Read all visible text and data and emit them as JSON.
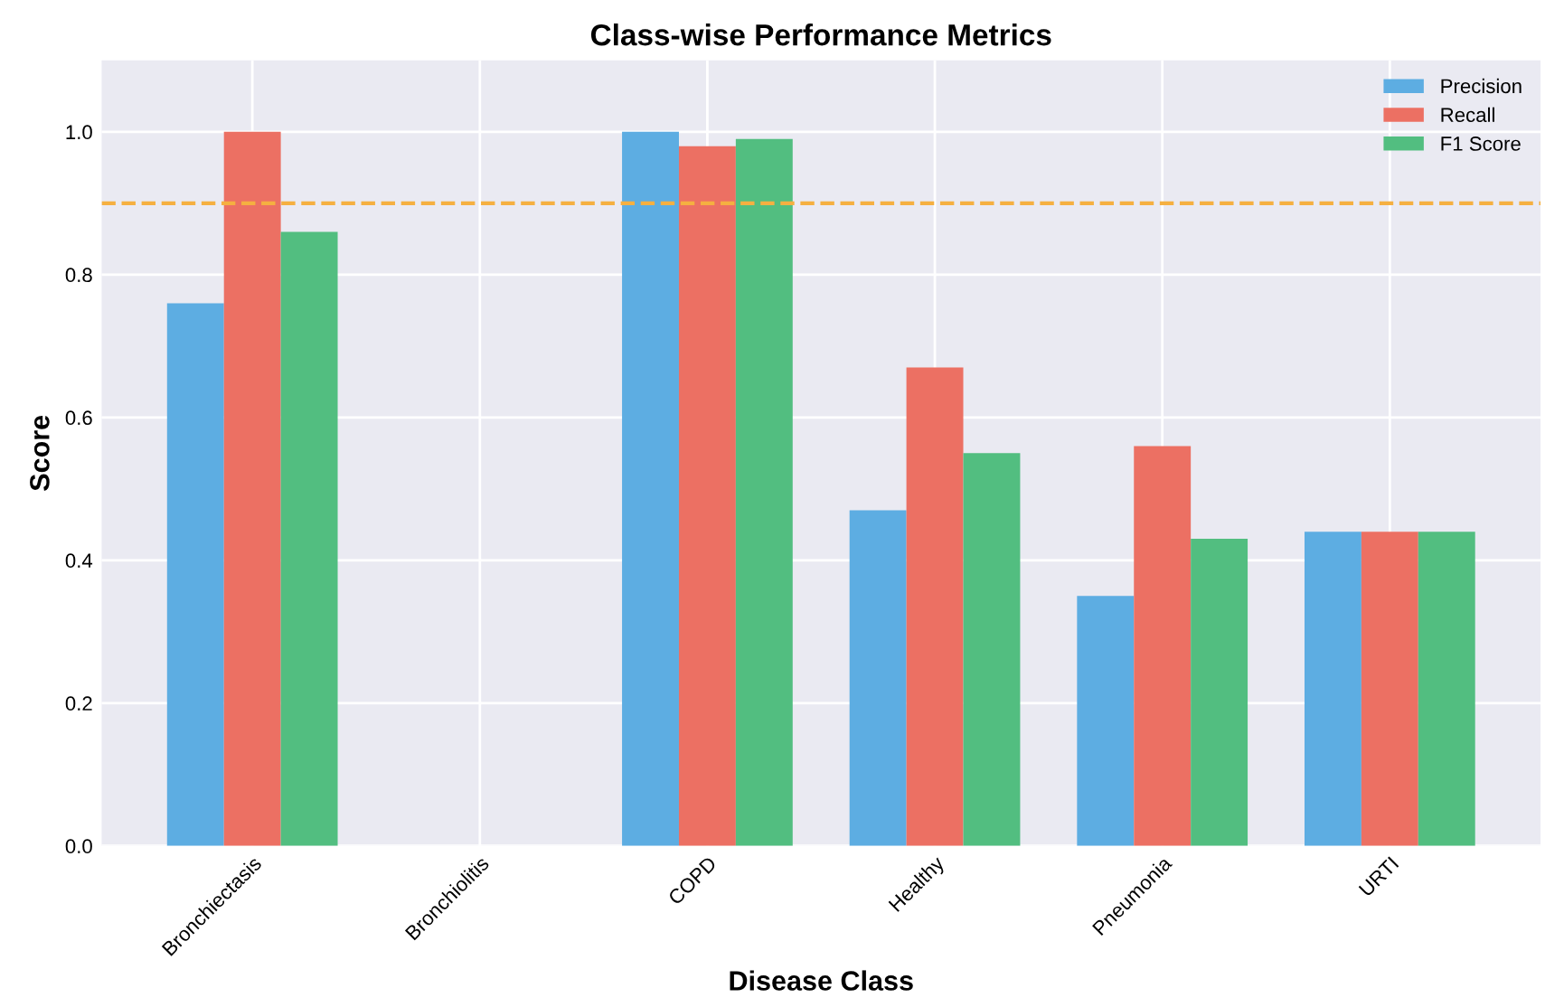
{
  "chart_data": {
    "type": "bar",
    "title": "Class-wise Performance Metrics",
    "xlabel": "Disease Class",
    "ylabel": "Score",
    "categories": [
      "Bronchiectasis",
      "Bronchiolitis",
      "COPD",
      "Healthy",
      "Pneumonia",
      "URTI"
    ],
    "series": [
      {
        "name": "Precision",
        "color": "#5dade2",
        "values": [
          0.76,
          0,
          1.0,
          0.47,
          0.35,
          0.44
        ]
      },
      {
        "name": "Recall",
        "color": "#ec7063",
        "values": [
          1.0,
          0,
          0.98,
          0.67,
          0.56,
          0.44
        ]
      },
      {
        "name": "F1 Score",
        "color": "#52be80",
        "values": [
          0.86,
          0,
          0.99,
          0.55,
          0.43,
          0.44
        ]
      }
    ],
    "ylim": [
      0,
      1.1
    ],
    "yticks": [
      {
        "value": 0,
        "label": "0.0"
      },
      {
        "value": 0.2,
        "label": "0.2"
      },
      {
        "value": 0.4,
        "label": "0.4"
      },
      {
        "value": 0.6,
        "label": "0.6"
      },
      {
        "value": 0.8,
        "label": "0.8"
      },
      {
        "value": 1.0,
        "label": "1.0"
      }
    ],
    "ref_lines": [
      {
        "axis": "y",
        "value": 0.9,
        "color": "#f5b041",
        "line_style": "dashed"
      }
    ],
    "grid": true,
    "legend": "top right"
  }
}
